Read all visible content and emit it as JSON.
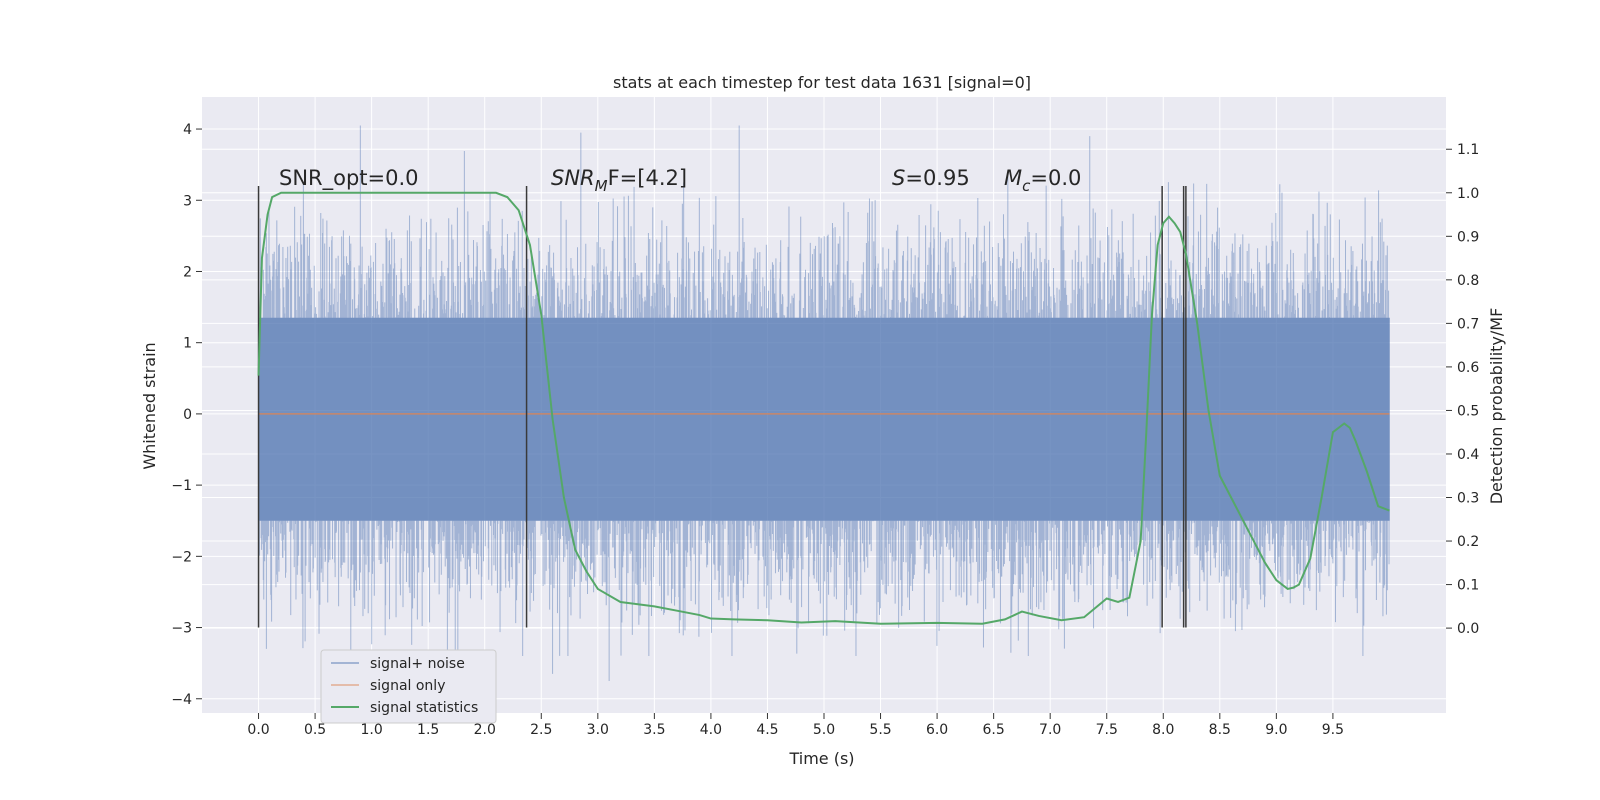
{
  "chart_data": {
    "type": "line",
    "title": "stats at each timestep for test data 1631 [signal=0]",
    "xlabel": "Time (s)",
    "ylabel_left": "Whitened strain",
    "ylabel_right": "Detection probability/MF",
    "xlim": [
      -0.5,
      10.5
    ],
    "ylim_left": [
      -4.2,
      4.45
    ],
    "ylim_right": [
      -0.195,
      1.22
    ],
    "x_ticks": [
      "0.0",
      "0.5",
      "1.0",
      "1.5",
      "2.0",
      "2.5",
      "3.0",
      "3.5",
      "4.0",
      "4.5",
      "5.0",
      "5.5",
      "6.0",
      "6.5",
      "7.0",
      "7.5",
      "8.0",
      "8.5",
      "9.0",
      "9.5"
    ],
    "y_left_ticks": [
      "−4",
      "−3",
      "−2",
      "−1",
      "0",
      "1",
      "2",
      "3",
      "4"
    ],
    "y_right_ticks": [
      "0.0",
      "0.1",
      "0.2",
      "0.3",
      "0.4",
      "0.5",
      "0.6",
      "0.7",
      "0.8",
      "0.9",
      "1.0",
      "1.1"
    ],
    "grid": true,
    "legend_position": "lower-left",
    "colors": {
      "signal_noise": "#4c72b0",
      "signal_only": "#dd8452",
      "signal_statistics": "#55a868",
      "marker_lines": "#3a3a3a",
      "axes_face": "#eaeaf2",
      "grid": "#ffffff"
    },
    "annotations": {
      "snr_opt": "SNR_opt=0.0",
      "snr_mf_main": "SNR",
      "snr_mf_sub": "M",
      "snr_mf_rest": "F=[4.2]",
      "s_italic": "S",
      "s_rest": "=0.95",
      "mc_main": "M",
      "mc_sub": "c",
      "mc_rest": "=0.0"
    },
    "series": [
      {
        "name": "signal+ noise",
        "color": "#4c72b0",
        "description_type": "noise_band",
        "x_range": [
          0.0,
          10.0
        ],
        "core_band": [
          -1.5,
          1.35
        ],
        "approx_peaks": [
          {
            "x": 0.9,
            "y": 4.05
          },
          {
            "x": 2.85,
            "y": 3.95
          },
          {
            "x": 4.25,
            "y": 4.05
          },
          {
            "x": 7.35,
            "y": 3.9
          },
          {
            "x": 3.1,
            "y": -3.75
          },
          {
            "x": 2.6,
            "y": -3.65
          }
        ]
      },
      {
        "name": "signal only",
        "color": "#dd8452",
        "x": [
          0.0,
          10.0
        ],
        "y": [
          0.0,
          0.0
        ]
      },
      {
        "name": "signal statistics",
        "color": "#55a868",
        "axis": "right",
        "x": [
          0.0,
          0.03,
          0.08,
          0.12,
          0.2,
          0.3,
          0.5,
          1.0,
          1.5,
          2.0,
          2.1,
          2.2,
          2.3,
          2.4,
          2.5,
          2.6,
          2.7,
          2.8,
          2.9,
          3.0,
          3.2,
          3.5,
          3.7,
          3.9,
          4.0,
          4.2,
          4.5,
          4.8,
          5.1,
          5.5,
          6.0,
          6.4,
          6.6,
          6.75,
          6.9,
          7.1,
          7.3,
          7.5,
          7.6,
          7.7,
          7.8,
          7.85,
          7.9,
          7.95,
          8.0,
          8.05,
          8.1,
          8.15,
          8.2,
          8.25,
          8.3,
          8.4,
          8.5,
          8.6,
          8.7,
          8.8,
          8.9,
          9.0,
          9.1,
          9.15,
          9.2,
          9.3,
          9.4,
          9.5,
          9.6,
          9.65,
          9.7,
          9.8,
          9.9,
          10.0
        ],
        "y": [
          0.58,
          0.85,
          0.95,
          0.99,
          1.0,
          1.0,
          1.0,
          1.0,
          1.0,
          1.0,
          1.0,
          0.99,
          0.96,
          0.88,
          0.72,
          0.48,
          0.3,
          0.18,
          0.13,
          0.09,
          0.06,
          0.05,
          0.04,
          0.03,
          0.022,
          0.02,
          0.018,
          0.013,
          0.016,
          0.01,
          0.012,
          0.01,
          0.02,
          0.038,
          0.028,
          0.018,
          0.025,
          0.068,
          0.06,
          0.07,
          0.2,
          0.45,
          0.72,
          0.88,
          0.93,
          0.945,
          0.93,
          0.91,
          0.86,
          0.78,
          0.7,
          0.5,
          0.35,
          0.3,
          0.25,
          0.2,
          0.15,
          0.11,
          0.09,
          0.093,
          0.1,
          0.16,
          0.3,
          0.45,
          0.47,
          0.46,
          0.43,
          0.36,
          0.28,
          0.27
        ]
      }
    ],
    "marker_lines_x": [
      0.0,
      2.37,
      7.99,
      8.18,
      8.2
    ]
  }
}
